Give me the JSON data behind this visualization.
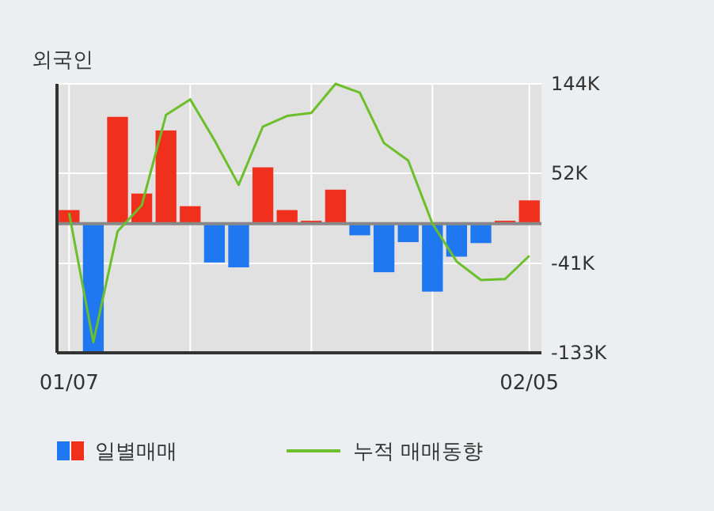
{
  "chart_data": {
    "type": "bar",
    "title": "외국인",
    "categories": [
      "01/07",
      null,
      null,
      null,
      null,
      null,
      null,
      null,
      null,
      null,
      null,
      null,
      null,
      null,
      null,
      null,
      null,
      null,
      null,
      "02/05"
    ],
    "series": [
      {
        "name": "일별매매",
        "values": [
          14,
          -133,
          110,
          31,
          96,
          18,
          -40,
          -45,
          58,
          14,
          3,
          35,
          -12,
          -50,
          -19,
          -70,
          -34,
          -20,
          3,
          24
        ],
        "colors": [
          "#f0301c",
          "#1f78f0",
          "#f0301c",
          "#f0301c",
          "#f0301c",
          "#f0301c",
          "#1f78f0",
          "#1f78f0",
          "#f0301c",
          "#f0301c",
          "#f0301c",
          "#f0301c",
          "#1f78f0",
          "#1f78f0",
          "#1f78f0",
          "#1f78f0",
          "#1f78f0",
          "#1f78f0",
          "#f0301c",
          "#f0301c"
        ]
      },
      {
        "name": "누적 매매동향",
        "type": "line",
        "color": "#6cbf2a",
        "values": [
          11,
          -122,
          -8,
          19,
          112,
          128,
          86,
          40,
          100,
          111,
          114,
          144,
          135,
          83,
          65,
          0,
          -39,
          -58,
          -57,
          -33
        ]
      }
    ],
    "ylim": [
      -133,
      144
    ],
    "yticks": [
      {
        "value": 144,
        "label": "144K"
      },
      {
        "value": 52,
        "label": "52K"
      },
      {
        "value": -41,
        "label": "-41K"
      },
      {
        "value": -133,
        "label": "-133K"
      }
    ],
    "grid": true,
    "legend": "bottom"
  }
}
